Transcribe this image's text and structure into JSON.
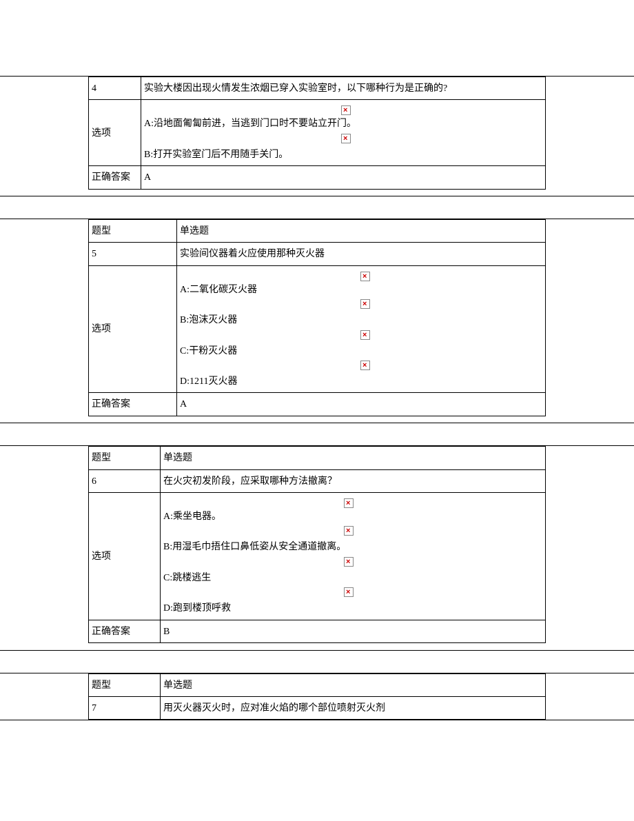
{
  "labels": {
    "options": "选项",
    "correct_answer": "正确答案",
    "question_type": "题型",
    "single_choice": "单选题"
  },
  "broken_icon_offsets": {
    "q4": 286,
    "q5": 262,
    "q6": 262
  },
  "q4": {
    "number": "4",
    "question": "实验大楼因出现火情发生浓烟已穿入实验室时，以下哪种行为是正确的?",
    "options": [
      "A:沿地面匍匐前进，当逃到门口时不要站立开门。",
      "B:打开实验室门后不用随手关门。"
    ],
    "answer": "A"
  },
  "q5": {
    "number": "5",
    "question": "实验间仪器着火应使用那种灭火器",
    "options": [
      "A:二氧化碳灭火器",
      "B:泡沫灭火器",
      "C:干粉灭火器",
      "D:1211灭火器"
    ],
    "answer": "A"
  },
  "q6": {
    "number": "6",
    "question": "在火灾初发阶段，应采取哪种方法撤离？",
    "options": [
      "A:乘坐电器。",
      "B:用湿毛巾捂住口鼻低姿从安全通道撤离。",
      "C:跳楼逃生",
      "D:跑到楼顶呼救"
    ],
    "answer": "B"
  },
  "q7": {
    "number": "7",
    "question": "用灭火器灭火时，应对准火焰的哪个部位喷射灭火剂"
  }
}
